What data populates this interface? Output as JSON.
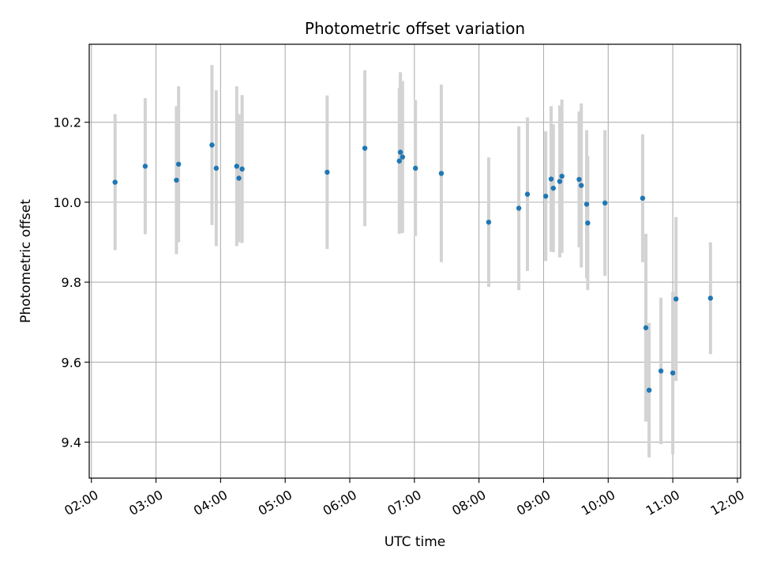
{
  "chart_data": {
    "type": "scatter",
    "title": "Photometric offset variation",
    "xlabel": "UTC time",
    "ylabel": "Photometric offset",
    "x_axis": "time",
    "xlim": [
      "01:58",
      "12:03"
    ],
    "ylim": [
      9.31,
      10.395
    ],
    "x_ticks": [
      "02:00",
      "03:00",
      "04:00",
      "05:00",
      "06:00",
      "07:00",
      "08:00",
      "09:00",
      "10:00",
      "11:00",
      "12:00"
    ],
    "y_ticks": [
      9.4,
      9.6,
      9.8,
      10.0,
      10.2
    ],
    "y_tick_labels": [
      "9.4",
      "9.6",
      "9.8",
      "10.0",
      "10.2"
    ],
    "grid": true,
    "colors": {
      "point": "#1f77b4",
      "errorbar": "#d3d3d3",
      "grid": "#b0b0b0"
    },
    "points": [
      {
        "x": "02:22",
        "y": 10.05,
        "err": 0.17
      },
      {
        "x": "02:50",
        "y": 10.09,
        "err": 0.17
      },
      {
        "x": "03:19",
        "y": 10.055,
        "err": 0.185
      },
      {
        "x": "03:21",
        "y": 10.095,
        "err": 0.195
      },
      {
        "x": "03:52",
        "y": 10.143,
        "err": 0.2
      },
      {
        "x": "03:56",
        "y": 10.085,
        "err": 0.195
      },
      {
        "x": "04:15",
        "y": 10.09,
        "err": 0.2
      },
      {
        "x": "04:17",
        "y": 10.06,
        "err": 0.16
      },
      {
        "x": "04:20",
        "y": 10.083,
        "err": 0.185
      },
      {
        "x": "05:39",
        "y": 10.075,
        "err": 0.192
      },
      {
        "x": "06:14",
        "y": 10.135,
        "err": 0.195
      },
      {
        "x": "06:46",
        "y": 10.103,
        "err": 0.182
      },
      {
        "x": "06:47",
        "y": 10.125,
        "err": 0.2
      },
      {
        "x": "06:49",
        "y": 10.113,
        "err": 0.19
      },
      {
        "x": "07:01",
        "y": 10.085,
        "err": 0.17
      },
      {
        "x": "07:25",
        "y": 10.072,
        "err": 0.222
      },
      {
        "x": "08:09",
        "y": 9.95,
        "err": 0.162
      },
      {
        "x": "08:37",
        "y": 9.985,
        "err": 0.205
      },
      {
        "x": "08:45",
        "y": 10.02,
        "err": 0.192
      },
      {
        "x": "09:02",
        "y": 10.015,
        "err": 0.162
      },
      {
        "x": "09:07",
        "y": 10.058,
        "err": 0.182
      },
      {
        "x": "09:09",
        "y": 10.035,
        "err": 0.16
      },
      {
        "x": "09:15",
        "y": 10.052,
        "err": 0.19
      },
      {
        "x": "09:17",
        "y": 10.065,
        "err": 0.192
      },
      {
        "x": "09:33",
        "y": 10.057,
        "err": 0.17
      },
      {
        "x": "09:35",
        "y": 10.042,
        "err": 0.205
      },
      {
        "x": "09:40",
        "y": 9.995,
        "err": 0.185
      },
      {
        "x": "09:41",
        "y": 9.948,
        "err": 0.168
      },
      {
        "x": "09:57",
        "y": 9.998,
        "err": 0.182
      },
      {
        "x": "10:32",
        "y": 10.01,
        "err": 0.16
      },
      {
        "x": "10:35",
        "y": 9.686,
        "err": 0.235
      },
      {
        "x": "10:38",
        "y": 9.53,
        "err": 0.168
      },
      {
        "x": "10:49",
        "y": 9.578,
        "err": 0.183
      },
      {
        "x": "11:00",
        "y": 9.573,
        "err": 0.203
      },
      {
        "x": "11:03",
        "y": 9.758,
        "err": 0.205
      },
      {
        "x": "11:35",
        "y": 9.76,
        "err": 0.14
      }
    ]
  }
}
